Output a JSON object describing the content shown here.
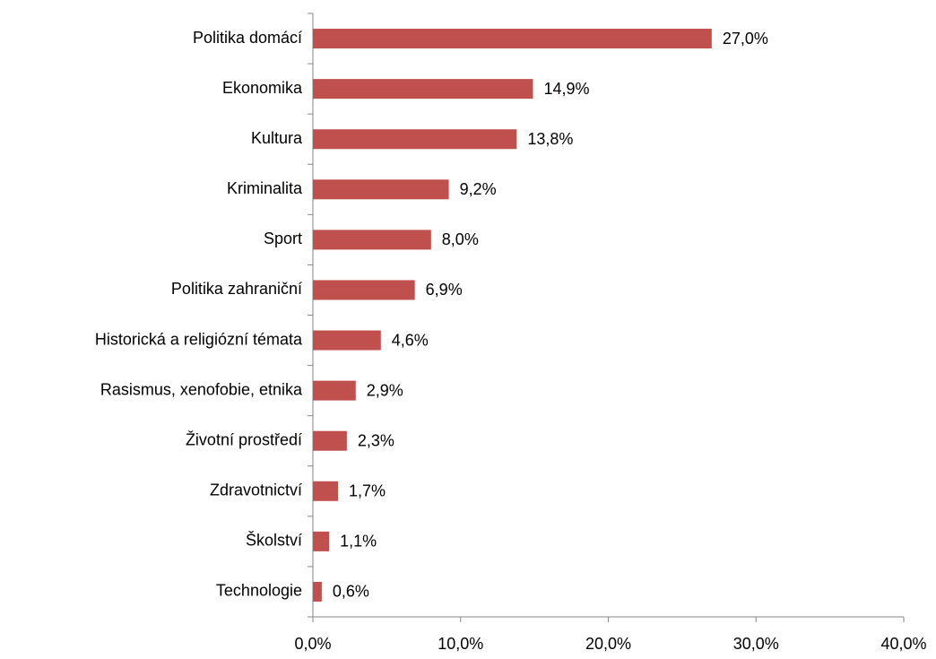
{
  "chart_data": {
    "type": "bar",
    "orientation": "horizontal",
    "categories": [
      "Politika domácí",
      "Ekonomika",
      "Kultura",
      "Kriminalita",
      "Sport",
      "Politika zahraniční",
      "Historická a religiózní témata",
      "Rasismus, xenofobie, etnika",
      "Životní prostředí",
      "Zdravotnictví",
      "Školství",
      "Technologie"
    ],
    "values": [
      27.0,
      14.9,
      13.8,
      9.2,
      8.0,
      6.9,
      4.6,
      2.9,
      2.3,
      1.7,
      1.1,
      0.6
    ],
    "value_labels": [
      "27,0%",
      "14,9%",
      "13,8%",
      "9,2%",
      "8,0%",
      "6,9%",
      "4,6%",
      "2,9%",
      "2,3%",
      "1,7%",
      "1,1%",
      "0,6%"
    ],
    "color": "#c0504d",
    "xlim": [
      0,
      40
    ],
    "xticks": [
      {
        "value": 0,
        "label": "0,0%"
      },
      {
        "value": 10,
        "label": "10,0%"
      },
      {
        "value": 20,
        "label": "20,0%"
      },
      {
        "value": 30,
        "label": "30,0%"
      },
      {
        "value": 40,
        "label": "40,0%"
      }
    ],
    "grid": false
  }
}
